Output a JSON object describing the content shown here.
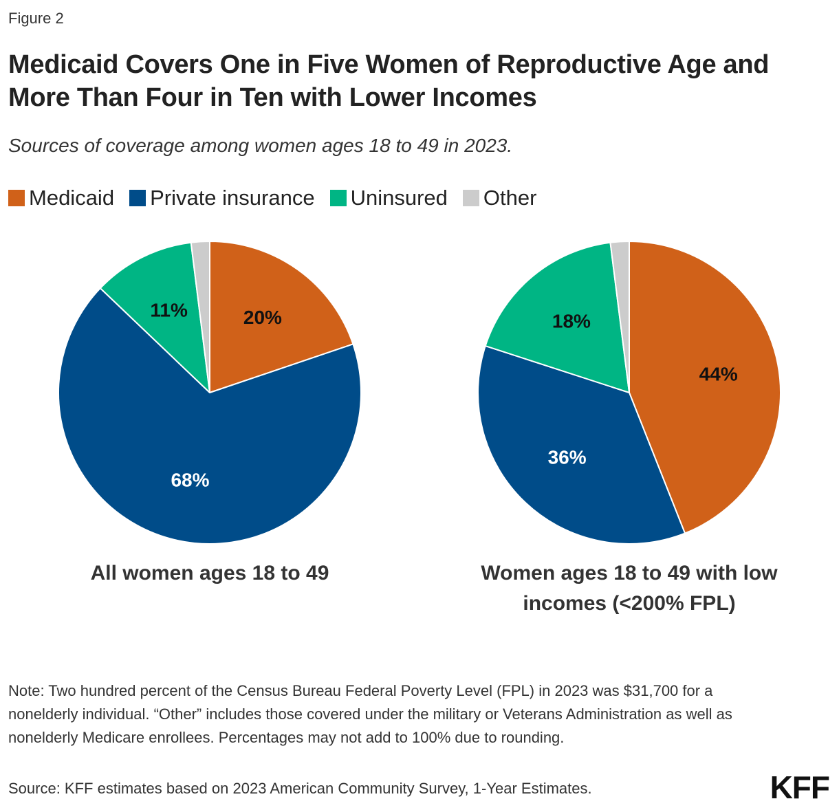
{
  "figure_label": "Figure 2",
  "colors": {
    "Medicaid": "#D06119",
    "Private insurance": "#004C89",
    "Uninsured": "#00B584",
    "Other": "#CCCCCC"
  },
  "chart_data": [
    {
      "type": "pie",
      "title": "Medicaid Covers One in Five Women of Reproductive Age and More Than Four in Ten with Lower Incomes",
      "subtitle": "Sources of coverage among women ages 18 to 49 in 2023.",
      "legend": [
        "Medicaid",
        "Private insurance",
        "Uninsured",
        "Other"
      ],
      "legend_position": "top-left",
      "caption": "All women ages 18 to 49",
      "slices": [
        {
          "label": "Medicaid",
          "value": 20,
          "display": "20%"
        },
        {
          "label": "Private insurance",
          "value": 68,
          "display": "68%"
        },
        {
          "label": "Uninsured",
          "value": 11,
          "display": "11%"
        },
        {
          "label": "Other",
          "value": 2,
          "display": ""
        }
      ]
    },
    {
      "type": "pie",
      "caption": "Women ages 18 to 49 with low incomes (<200% FPL)",
      "slices": [
        {
          "label": "Medicaid",
          "value": 44,
          "display": "44%"
        },
        {
          "label": "Private insurance",
          "value": 36,
          "display": "36%"
        },
        {
          "label": "Uninsured",
          "value": 18,
          "display": "18%"
        },
        {
          "label": "Other",
          "value": 2,
          "display": ""
        }
      ]
    }
  ],
  "note": "Note: Two hundred percent of the Census Bureau Federal Poverty Level (FPL) in 2023 was $31,700 for a nonelderly individual. “Other” includes those covered under the military or Veterans Administration as well as nonelderly Medicare enrollees. Percentages may not add to 100% due to rounding.",
  "source": "Source: KFF estimates based on 2023 American Community Survey, 1-Year Estimates.",
  "logo_text": "KFF"
}
